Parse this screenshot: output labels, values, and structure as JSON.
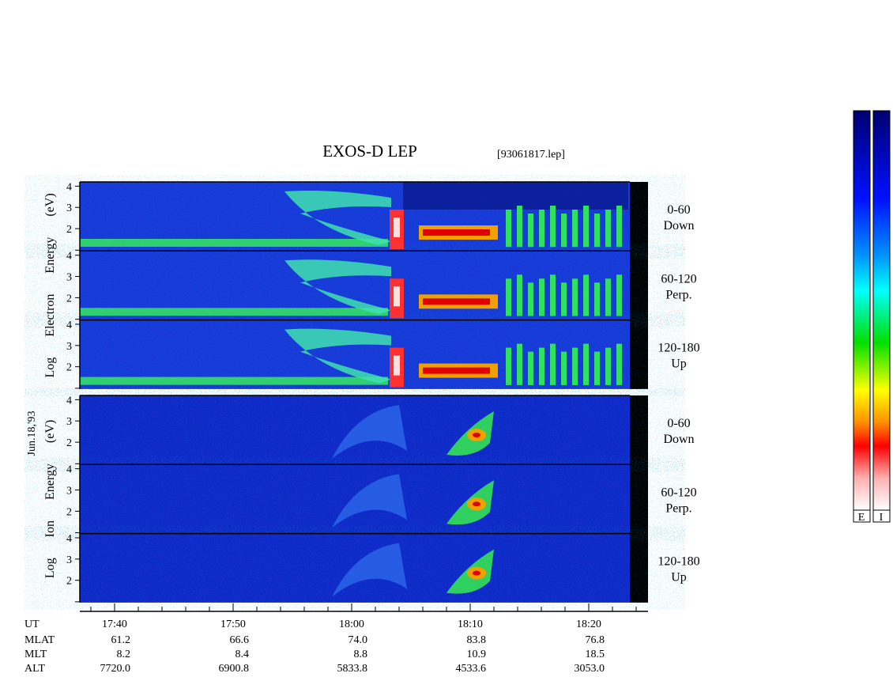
{
  "header": {
    "title": "EXOS-D LEP",
    "file": "[93061817.lep]"
  },
  "date_label": "Jun.18,'93",
  "panels": [
    {
      "species_label": "Log Electron Energy (eV)",
      "subpanels": [
        {
          "pitch": "0-60",
          "direction": "Down"
        },
        {
          "pitch": "60-120",
          "direction": "Perp."
        },
        {
          "pitch": "120-180",
          "direction": "Up"
        }
      ]
    },
    {
      "species_label": "Log Ion Energy (eV)",
      "subpanels": [
        {
          "pitch": "0-60",
          "direction": "Down"
        },
        {
          "pitch": "60-120",
          "direction": "Perp."
        },
        {
          "pitch": "120-180",
          "direction": "Up"
        }
      ]
    }
  ],
  "energy_axis": {
    "ylim": [
      0.95,
      4.2
    ],
    "yticks": [
      2,
      3,
      4
    ]
  },
  "time_axis": {
    "label": "UT",
    "ticks": [
      "17:40",
      "17:50",
      "18:00",
      "18:10",
      "18:20"
    ]
  },
  "ephemeris": [
    {
      "label": "MLAT",
      "values": [
        "61.2",
        "66.6",
        "74.0",
        "83.8",
        "76.8"
      ]
    },
    {
      "label": "MLT",
      "values": [
        "8.2",
        "8.4",
        "8.8",
        "10.9",
        "18.5"
      ]
    },
    {
      "label": "ALT",
      "values": [
        "7720.0",
        "6900.8",
        "5833.8",
        "4533.6",
        "3053.0"
      ]
    }
  ],
  "colorbar_labels": [
    "E",
    "I"
  ]
}
